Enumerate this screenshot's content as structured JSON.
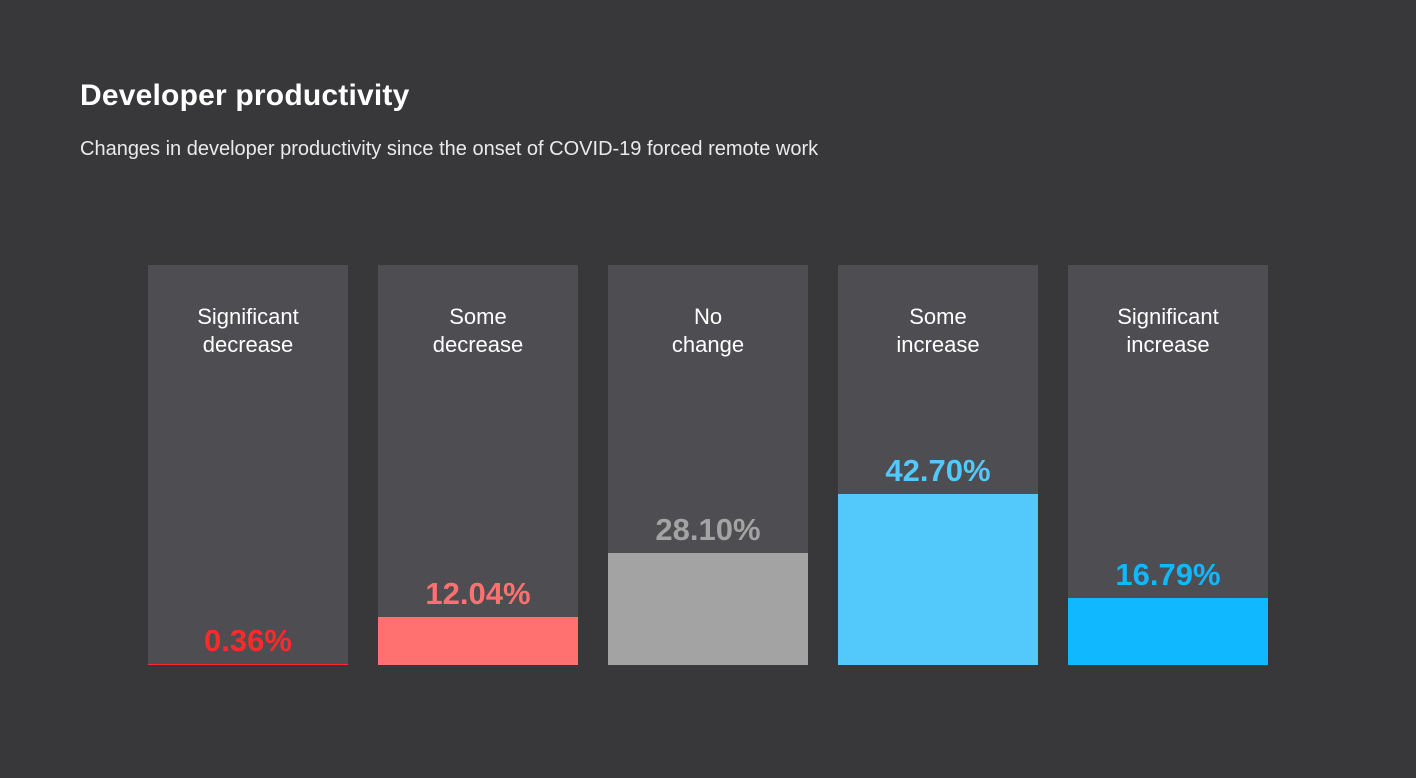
{
  "header": {
    "title": "Developer productivity",
    "subtitle": "Changes in developer productivity since the onset of COVID-19 forced remote work"
  },
  "chart_data": {
    "type": "bar",
    "title": "Developer productivity",
    "subtitle": "Changes in developer productivity since the onset of COVID-19 forced remote work",
    "orientation": "vertical",
    "unit": "percent",
    "ylim": [
      0,
      100
    ],
    "grid": false,
    "legend": false,
    "categories": [
      "Significant decrease",
      "Some decrease",
      "No change",
      "Some increase",
      "Significant increase"
    ],
    "values": [
      0.36,
      12.04,
      28.1,
      42.7,
      16.79
    ],
    "bars": [
      {
        "label": "Significant decrease",
        "label_display": "Significant\ndecrease",
        "value": 0.36,
        "value_label": "0.36%",
        "color": "#fb2b2b"
      },
      {
        "label": "Some decrease",
        "label_display": "Some\ndecrease",
        "value": 12.04,
        "value_label": "12.04%",
        "color": "#ff7070"
      },
      {
        "label": "No change",
        "label_display": "No\nchange",
        "value": 28.1,
        "value_label": "28.10%",
        "color": "#a3a3a3"
      },
      {
        "label": "Some increase",
        "label_display": "Some\nincrease",
        "value": 42.7,
        "value_label": "42.70%",
        "color": "#53c9fb"
      },
      {
        "label": "Significant increase",
        "label_display": "Significant\nincrease",
        "value": 16.79,
        "value_label": "16.79%",
        "color": "#10b8ff"
      }
    ]
  },
  "colors": {
    "page_background": "#38383b",
    "column_background": "#4d4d52",
    "title_text": "#ffffff",
    "subtitle_text": "#eaeaea",
    "category_text": "#ffffff"
  }
}
